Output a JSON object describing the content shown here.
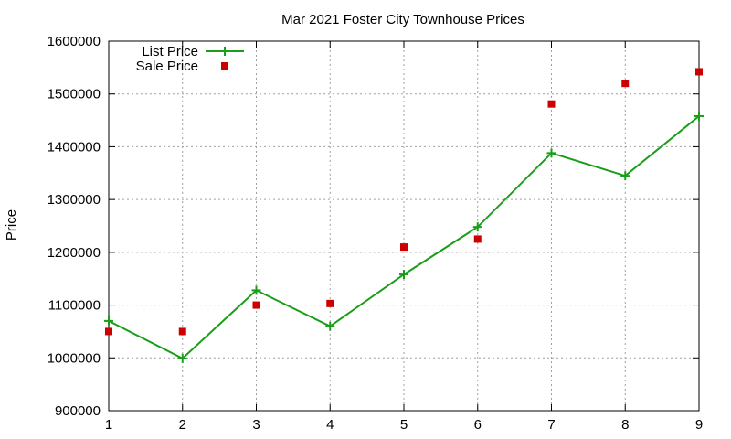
{
  "chart_data": {
    "type": "line",
    "title": "Mar 2021 Foster City Townhouse Prices",
    "xlabel": "",
    "ylabel": "Price",
    "x": [
      1,
      2,
      3,
      4,
      5,
      6,
      7,
      8,
      9
    ],
    "xlim": [
      1,
      9
    ],
    "ylim": [
      900000,
      1600000
    ],
    "xticks": [
      "1",
      "2",
      "3",
      "4",
      "5",
      "6",
      "7",
      "8",
      "9"
    ],
    "yticks": [
      "900000",
      "1000000",
      "1100000",
      "1200000",
      "1300000",
      "1400000",
      "1500000",
      "1600000"
    ],
    "grid": true,
    "legend_position": "top-left",
    "series": [
      {
        "name": "List Price",
        "style": "linespoints",
        "marker": "plus",
        "color": "#1a9e1a",
        "values": [
          1070000,
          999000,
          1128000,
          1060000,
          1158000,
          1248000,
          1388000,
          1345000,
          1458000
        ]
      },
      {
        "name": "Sale Price",
        "style": "points",
        "marker": "square",
        "color": "#cc0000",
        "values": [
          1050000,
          1050000,
          1100000,
          1103000,
          1210000,
          1225000,
          1481000,
          1520000,
          1542000
        ]
      }
    ]
  }
}
